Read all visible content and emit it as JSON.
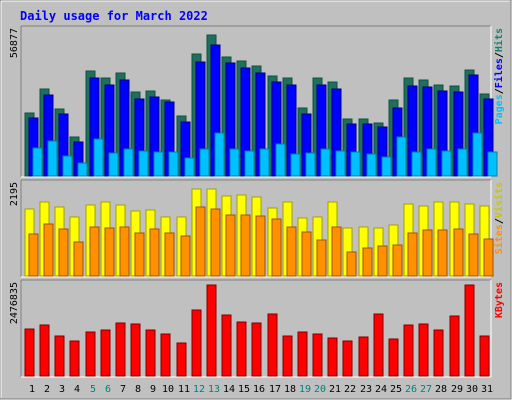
{
  "chart_data": [
    {
      "type": "bar",
      "title": "Daily usage for March 2022",
      "categories": [
        "1",
        "2",
        "3",
        "4",
        "5",
        "6",
        "7",
        "8",
        "9",
        "10",
        "11",
        "12",
        "13",
        "14",
        "15",
        "16",
        "17",
        "18",
        "19",
        "20",
        "21",
        "22",
        "23",
        "24",
        "25",
        "26",
        "27",
        "28",
        "29",
        "30",
        "31"
      ],
      "weekend_days": [
        "5",
        "6",
        "12",
        "13",
        "19",
        "20",
        "26",
        "27"
      ],
      "ymax_label": "56877",
      "ylim": [
        0,
        58000
      ],
      "series": [
        {
          "name": "Hits",
          "color": "#1f6f5f",
          "values": [
            25000,
            34500,
            26500,
            15500,
            41500,
            38500,
            40500,
            33000,
            33500,
            30000,
            23500,
            48000,
            55500,
            47000,
            45500,
            43500,
            39500,
            38500,
            27000,
            38500,
            37000,
            22500,
            22500,
            21000,
            30000,
            38500,
            38000,
            36000,
            35500,
            42000,
            32500
          ]
        },
        {
          "name": "Files",
          "color": "#0000ff",
          "values": [
            23000,
            32000,
            24500,
            13500,
            38500,
            36000,
            38000,
            30500,
            31000,
            29000,
            21500,
            45000,
            51500,
            44500,
            42500,
            40500,
            37000,
            36000,
            24500,
            36000,
            34500,
            20500,
            20500,
            19500,
            27000,
            35500,
            35000,
            33500,
            33000,
            40000,
            30500
          ]
        },
        {
          "name": "Pages",
          "color": "#00c0ff",
          "values": [
            11000,
            14000,
            8000,
            5000,
            14500,
            9000,
            10500,
            10000,
            9500,
            9500,
            7000,
            10500,
            17000,
            10500,
            10000,
            10500,
            12500,
            8800,
            9000,
            10500,
            10000,
            9500,
            8500,
            7500,
            15500,
            9500,
            10500,
            10000,
            10500,
            17000,
            9500
          ]
        }
      ],
      "legend": [
        "Pages",
        "/",
        "Files",
        "/",
        "Hits"
      ]
    },
    {
      "type": "bar",
      "ymax_label": "2195",
      "ylim": [
        0,
        2250
      ],
      "series": [
        {
          "name": "Visits",
          "color": "#ffff00",
          "values": [
            1630,
            1800,
            1680,
            1420,
            1710,
            1780,
            1720,
            1580,
            1600,
            1420,
            1420,
            2100,
            2110,
            1930,
            1950,
            1900,
            1640,
            1780,
            1400,
            1420,
            1800,
            1170,
            1180,
            1170,
            1240,
            1730,
            1700,
            1780,
            1800,
            1750,
            1700
          ]
        },
        {
          "name": "Sites",
          "color": "#ff9000",
          "values": [
            1010,
            1260,
            1130,
            830,
            1180,
            1160,
            1190,
            1050,
            1130,
            1050,
            970,
            1670,
            1610,
            1470,
            1470,
            1440,
            1370,
            1190,
            1070,
            880,
            1180,
            570,
            670,
            720,
            760,
            1050,
            1110,
            1120,
            1130,
            1020,
            890
          ]
        }
      ],
      "legend": [
        "Sites",
        "/",
        "Visits"
      ]
    },
    {
      "type": "bar",
      "ymax_label": "2476835",
      "ylim": [
        0,
        2500000
      ],
      "series": [
        {
          "name": "KBytes",
          "color": "#ff0000",
          "values": [
            1260000,
            1370000,
            1080000,
            930000,
            1190000,
            1240000,
            1420000,
            1410000,
            1230000,
            1120000,
            890000,
            1780000,
            2440000,
            1650000,
            1440000,
            1420000,
            1680000,
            1080000,
            1180000,
            1120000,
            1020000,
            940000,
            1040000,
            1660000,
            990000,
            1380000,
            1390000,
            1240000,
            1600000,
            2440000,
            1070000
          ]
        }
      ],
      "legend": [
        "KBytes"
      ]
    }
  ]
}
